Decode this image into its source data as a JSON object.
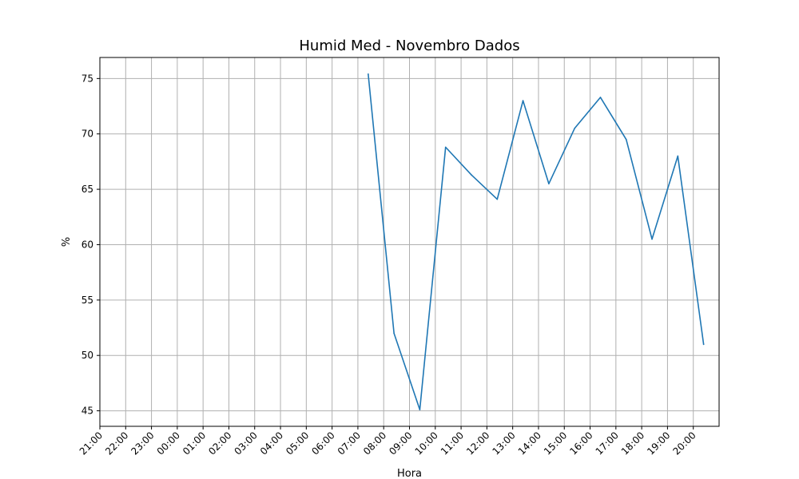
{
  "chart_data": {
    "type": "line",
    "title": "Humid Med - Novembro Dados",
    "xlabel": "Hora",
    "ylabel": "%",
    "x_ticks": [
      "21:00",
      "22:00",
      "23:00",
      "00:00",
      "01:00",
      "02:00",
      "03:00",
      "04:00",
      "05:00",
      "06:00",
      "07:00",
      "08:00",
      "09:00",
      "10:00",
      "11:00",
      "12:00",
      "13:00",
      "14:00",
      "15:00",
      "16:00",
      "17:00",
      "18:00",
      "19:00",
      "20:00"
    ],
    "x_unit": "hours",
    "x_start_label": "21:00",
    "xlim": [
      0,
      24
    ],
    "y_ticks": [
      45,
      50,
      55,
      60,
      65,
      70,
      75
    ],
    "ylim": [
      43.6,
      76.9
    ],
    "grid": true,
    "series": [
      {
        "color": "#1f77b4",
        "points": [
          {
            "x": 10.4,
            "y": 75.4
          },
          {
            "x": 11.4,
            "y": 52.0
          },
          {
            "x": 12.4,
            "y": 45.1
          },
          {
            "x": 13.4,
            "y": 68.8
          },
          {
            "x": 14.4,
            "y": 66.3
          },
          {
            "x": 15.4,
            "y": 64.1
          },
          {
            "x": 16.4,
            "y": 73.0
          },
          {
            "x": 17.4,
            "y": 65.5
          },
          {
            "x": 18.4,
            "y": 70.5
          },
          {
            "x": 19.4,
            "y": 73.3
          },
          {
            "x": 20.4,
            "y": 69.5
          },
          {
            "x": 21.4,
            "y": 60.5
          },
          {
            "x": 22.4,
            "y": 68.0
          },
          {
            "x": 23.4,
            "y": 51.0
          }
        ]
      }
    ]
  }
}
